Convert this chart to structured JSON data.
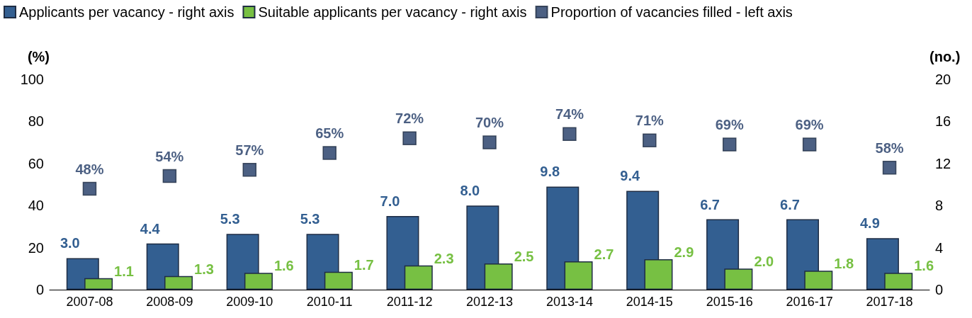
{
  "chart_data": {
    "type": "bar",
    "categories": [
      "2007-08",
      "2008-09",
      "2009-10",
      "2010-11",
      "2011-12",
      "2012-13",
      "2013-14",
      "2014-15",
      "2015-16",
      "2016-17",
      "2017-18"
    ],
    "ylabel": "(%)",
    "y2label": "(no.)",
    "ylim": [
      0,
      100
    ],
    "yticks": [
      0,
      20,
      40,
      60,
      80,
      100
    ],
    "y2lim": [
      0,
      20
    ],
    "y2ticks": [
      0,
      4,
      8,
      12,
      16,
      20
    ],
    "grid": false,
    "legend": "top left",
    "marker": "square",
    "series": [
      {
        "name": "Applicants per vacancy - right axis",
        "axis": "y2",
        "color": "#335f91",
        "values": [
          3.0,
          4.4,
          5.3,
          5.3,
          7.0,
          8.0,
          9.8,
          9.4,
          6.7,
          6.7,
          4.9
        ],
        "value_labels": [
          "3.0",
          "4.4",
          "5.3",
          "5.3",
          "7.0",
          "8.0",
          "9.8",
          "9.4",
          "6.7",
          "6.7",
          "4.9"
        ]
      },
      {
        "name": "Suitable applicants per vacancy - right axis",
        "axis": "y2",
        "color": "#77c043",
        "values": [
          1.1,
          1.3,
          1.6,
          1.7,
          2.3,
          2.5,
          2.7,
          2.9,
          2.0,
          1.8,
          1.6
        ],
        "value_labels": [
          "1.1",
          "1.3",
          "1.6",
          "1.7",
          "2.3",
          "2.5",
          "2.7",
          "2.9",
          "2.0",
          "1.8",
          "1.6"
        ]
      },
      {
        "name": "Proportion of vacancies filled - left axis",
        "type": "scatter",
        "color": "#1f3864",
        "values": [
          48,
          54,
          57,
          65,
          72,
          70,
          74,
          71,
          69,
          69,
          58
        ],
        "value_labels": [
          "48%",
          "54%",
          "57%",
          "65%",
          "72%",
          "70%",
          "74%",
          "71%",
          "69%",
          "69%",
          "58%"
        ]
      }
    ]
  }
}
